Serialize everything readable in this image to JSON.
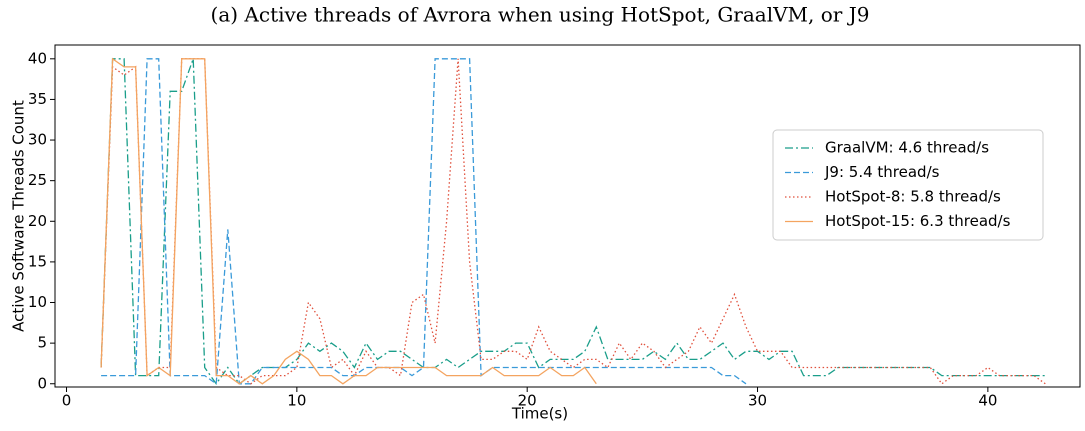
{
  "chart_data": {
    "type": "line",
    "title": "(a) Active threads of Avrora when using HotSpot, GraalVM, or J9",
    "xlabel": "Time(s)",
    "ylabel": "Active Software Threads Count",
    "x": [
      1.5,
      2,
      2.5,
      3,
      3.5,
      4,
      4.5,
      5,
      5.5,
      6,
      6.5,
      7,
      7.5,
      8,
      8.5,
      9,
      9.5,
      10,
      10.5,
      11,
      11.5,
      12,
      12.5,
      13,
      13.5,
      14,
      14.5,
      15,
      15.5,
      16,
      16.5,
      17,
      17.5,
      18,
      18.5,
      19,
      19.5,
      20,
      20.5,
      21,
      21.5,
      22,
      22.5,
      23,
      23.5,
      24,
      24.5,
      25,
      25.5,
      26,
      26.5,
      27,
      27.5,
      28,
      28.5,
      29,
      29.5,
      30,
      30.5,
      31,
      31.5,
      32,
      32.5,
      33,
      33.5,
      34,
      34.5,
      35,
      35.5,
      36,
      36.5,
      37,
      37.5,
      38,
      38.5,
      39,
      39.5,
      40,
      40.5,
      41,
      41.5,
      42,
      42.5
    ],
    "series": [
      {
        "name": "GraalVM: 4.6 thread/s",
        "color": "#1a9e8a",
        "linestyle": "dashdot",
        "values": [
          2,
          40,
          40,
          1,
          1,
          1,
          36,
          36,
          40,
          2,
          0,
          2,
          0,
          1,
          2,
          2,
          2,
          3,
          5,
          4,
          5,
          4,
          2,
          5,
          3,
          4,
          4,
          3,
          2,
          2,
          3,
          2,
          3,
          4,
          4,
          4,
          5,
          5,
          2,
          3,
          3,
          3,
          4,
          7,
          3,
          3,
          3,
          3,
          4,
          3,
          5,
          3,
          3,
          4,
          5,
          3,
          4,
          4,
          3,
          4,
          4,
          1,
          1,
          1,
          2,
          2,
          2,
          2,
          2,
          2,
          2,
          2,
          2,
          1,
          1,
          1,
          1,
          1,
          1,
          1,
          1,
          1,
          1
        ]
      },
      {
        "name": "J9: 5.4 thread/s",
        "color": "#3a9ad9",
        "linestyle": "dashed",
        "values": [
          1,
          1,
          1,
          1,
          40,
          40,
          1,
          1,
          1,
          1,
          0,
          19,
          0,
          0,
          2,
          2,
          2,
          2,
          2,
          2,
          2,
          1,
          1,
          2,
          2,
          2,
          2,
          1,
          2,
          40,
          40,
          40,
          40,
          1,
          2,
          2,
          2,
          2,
          2,
          2,
          2,
          2,
          2,
          2,
          2,
          2,
          2,
          2,
          2,
          2,
          2,
          2,
          2,
          2,
          1,
          1,
          0,
          null,
          null,
          null,
          null,
          null,
          null,
          null,
          null,
          null,
          null,
          null,
          null,
          null,
          null,
          null,
          null,
          null,
          null,
          null,
          null,
          null,
          null,
          null,
          null,
          null,
          null
        ]
      },
      {
        "name": "HotSpot-8: 5.8 thread/s",
        "color": "#e0503c",
        "linestyle": "dotted",
        "values": [
          2,
          39,
          38,
          39,
          1,
          2,
          2,
          40,
          40,
          40,
          2,
          1,
          1,
          0,
          1,
          1,
          1,
          2,
          10,
          8,
          2,
          3,
          1,
          4,
          2,
          2,
          1,
          10,
          11,
          5,
          20,
          40,
          15,
          3,
          3,
          4,
          4,
          3,
          7,
          4,
          3,
          2,
          3,
          3,
          2,
          5,
          3,
          5,
          4,
          2,
          3,
          4,
          7,
          5,
          8,
          11,
          7,
          4,
          4,
          4,
          2,
          2,
          2,
          2,
          2,
          2,
          2,
          2,
          2,
          2,
          2,
          2,
          2,
          0,
          1,
          1,
          1,
          2,
          1,
          1,
          1,
          1,
          0
        ]
      },
      {
        "name": "HotSpot-15: 6.3 thread/s",
        "color": "#f4a460",
        "linestyle": "solid",
        "values": [
          2,
          40,
          39,
          39,
          1,
          2,
          1,
          40,
          40,
          40,
          1,
          1,
          0,
          1,
          0,
          1,
          3,
          4,
          3,
          1,
          1,
          0,
          1,
          1,
          2,
          2,
          2,
          2,
          2,
          2,
          1,
          1,
          1,
          1,
          2,
          1,
          1,
          1,
          1,
          2,
          1,
          1,
          2,
          0,
          null,
          null,
          null,
          null,
          null,
          null,
          null,
          null,
          null,
          null,
          null,
          null,
          null,
          null,
          null,
          null,
          null,
          null,
          null,
          null,
          null,
          null,
          null,
          null,
          null,
          null,
          null,
          null,
          null,
          null,
          null,
          null,
          null,
          null,
          null,
          null,
          null,
          null,
          null
        ]
      }
    ],
    "xlim": [
      -0.5,
      44
    ],
    "ylim": [
      -0.4,
      41.7
    ],
    "xticks": [
      0,
      10,
      20,
      30,
      40
    ],
    "yticks": [
      0,
      5,
      10,
      15,
      20,
      25,
      30,
      35,
      40
    ],
    "legend": "right"
  }
}
